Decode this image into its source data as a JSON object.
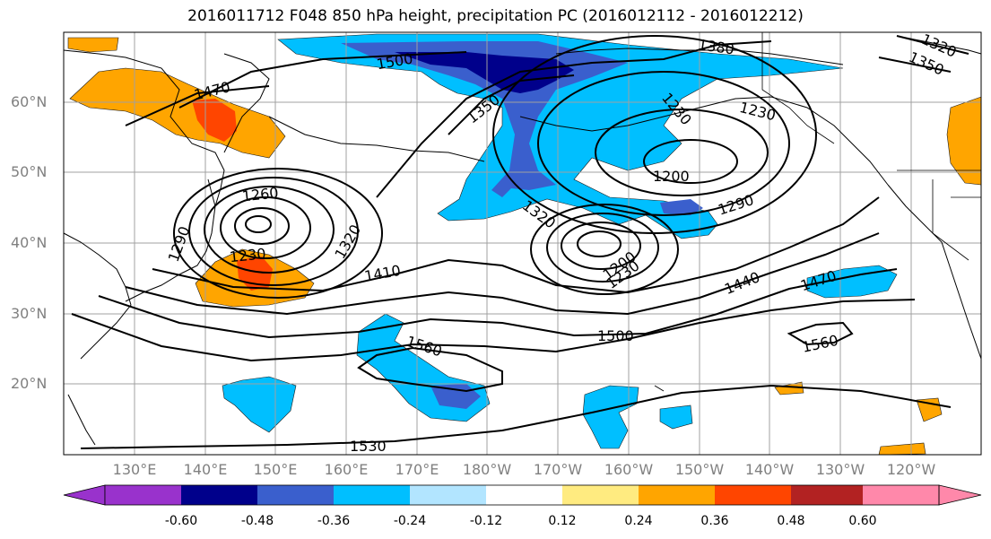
{
  "title": "2016011712 F048 850 hPa height, precipitation PC (2016012112 - 2016012212)",
  "lat_labels": [
    "60°N",
    "50°N",
    "40°N",
    "30°N",
    "20°N"
  ],
  "lon_labels": [
    "130°E",
    "140°E",
    "150°E",
    "160°E",
    "170°E",
    "180°W",
    "170°W",
    "160°W",
    "150°W",
    "140°W",
    "130°W",
    "120°W"
  ],
  "contour_labels": [
    "1500",
    "1470",
    "1380",
    "1320",
    "1350",
    "1350",
    "1230",
    "1230",
    "1200",
    "1290",
    "1260",
    "1290",
    "1320",
    "1230",
    "1200",
    "1230",
    "1320",
    "1410",
    "1440",
    "1470",
    "1500",
    "1560",
    "1560",
    "1530"
  ],
  "colorbar": {
    "labels": [
      "-0.60",
      "-0.48",
      "-0.36",
      "-0.24",
      "-0.12",
      "0.12",
      "0.24",
      "0.36",
      "0.48",
      "0.60"
    ],
    "colors": [
      "#9932cc",
      "#00008b",
      "#3a5fcd",
      "#00bfff",
      "#b2e5ff",
      "#ffffff",
      "#ffeb80",
      "#ffa500",
      "#ff4500",
      "#b22222",
      "#ff88aa"
    ]
  },
  "shading_colors": {
    "neg_light": "#00bfff",
    "neg_mid": "#3a5fcd",
    "neg_dark": "#00008b",
    "pos_light": "#ffa500",
    "pos_mid": "#ff4500",
    "pos_pale": "#ffeb80"
  }
}
